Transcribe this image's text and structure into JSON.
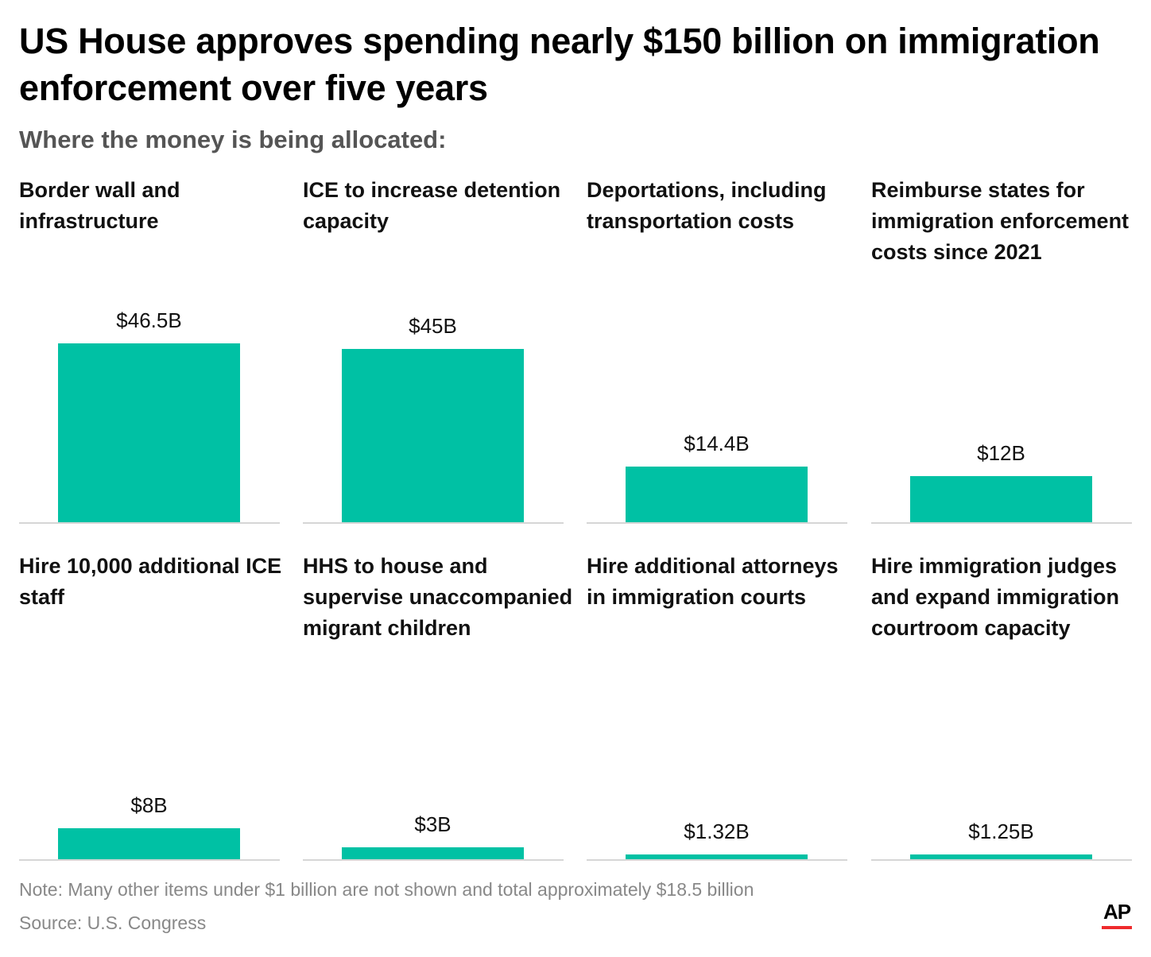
{
  "title": "US House approves spending nearly $150 billion on immigration enforcement over five years",
  "subtitle": "Where the money is being allocated:",
  "note": "Note: Many other items under $1 billion are not shown and total approximately $18.5 billion",
  "source": "Source: U.S. Congress",
  "logo": "AP",
  "colors": {
    "bar": "#00c1a4",
    "baseline": "#d6d6d6",
    "logo_red": "#ef2b2d"
  },
  "chart_data": {
    "type": "bar",
    "layout": "small multiples, 2 rows x 4 columns, shared scale",
    "unit": "billions of dollars",
    "categories": [
      "Border wall and infrastructure",
      "ICE to increase detention capacity",
      "Deportations, including transportation costs",
      "Reimburse states for immigration enforcement costs since 2021",
      "Hire 10,000 additional ICE staff",
      "HHS to house and supervise unaccompanied migrant children",
      "Hire additional attorneys in immigration courts",
      "Hire immigration judges and expand immigration courtroom capacity"
    ],
    "values": [
      46.5,
      45,
      14.4,
      12,
      8,
      3,
      1.32,
      1.25
    ],
    "labels": [
      "$46.5B",
      "$45B",
      "$14.4B",
      "$12B",
      "$8B",
      "$3B",
      "$1.32B",
      "$1.25B"
    ],
    "ylim": [
      0,
      46.5
    ],
    "grid": false
  }
}
